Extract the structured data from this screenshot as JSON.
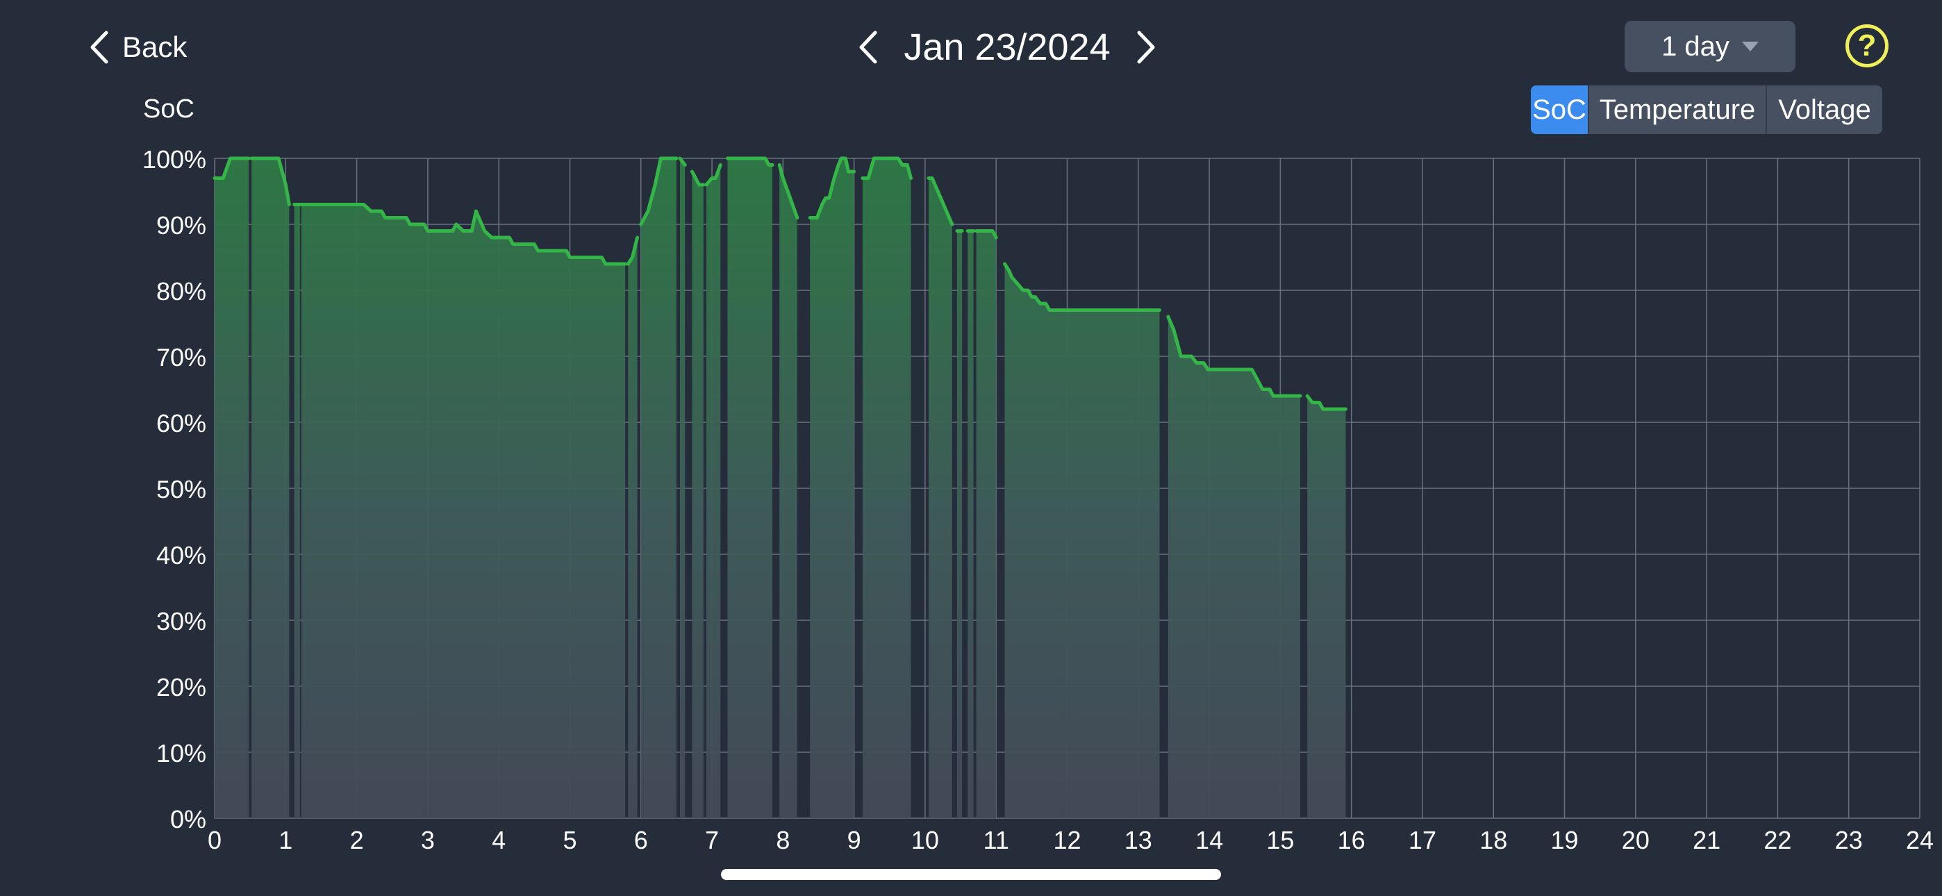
{
  "header": {
    "back_label": "Back",
    "date_label": "Jan 23/2024",
    "range_label": "1 day",
    "help_label": "?"
  },
  "tabs": [
    {
      "label": "SoC",
      "active": true
    },
    {
      "label": "Temperature",
      "active": false
    },
    {
      "label": "Voltage",
      "active": false
    }
  ],
  "colors": {
    "background": "#252d3b",
    "line": "#34b547",
    "fill_top": "#2e7a45",
    "accent": "#3c8cf0",
    "help": "#f0f05a"
  },
  "chart_data": {
    "type": "area",
    "ylabel": "SoC",
    "xlim": [
      0,
      24
    ],
    "ylim": [
      0,
      100
    ],
    "grid": true,
    "x_ticks": [
      "0",
      "1",
      "2",
      "3",
      "4",
      "5",
      "6",
      "7",
      "8",
      "9",
      "10",
      "11",
      "12",
      "13",
      "14",
      "15",
      "16",
      "17",
      "18",
      "19",
      "20",
      "21",
      "22",
      "23",
      "24"
    ],
    "y_ticks": [
      "0%",
      "10%",
      "20%",
      "30%",
      "40%",
      "50%",
      "60%",
      "70%",
      "80%",
      "90%",
      "100%"
    ],
    "segments": [
      [
        [
          0,
          97
        ],
        [
          0.12,
          97
        ],
        [
          0.22,
          100
        ],
        [
          0.48,
          100
        ]
      ],
      [
        [
          0.52,
          100
        ],
        [
          0.9,
          100
        ],
        [
          1.0,
          96
        ],
        [
          1.05,
          93
        ]
      ],
      [
        [
          1.12,
          93
        ],
        [
          1.2,
          93
        ]
      ],
      [
        [
          1.22,
          93
        ],
        [
          2.1,
          93
        ],
        [
          2.2,
          92
        ],
        [
          2.35,
          92
        ],
        [
          2.4,
          91
        ],
        [
          2.7,
          91
        ],
        [
          2.75,
          90
        ],
        [
          2.95,
          90
        ],
        [
          3.0,
          89
        ],
        [
          3.35,
          89
        ],
        [
          3.4,
          90
        ],
        [
          3.5,
          89
        ],
        [
          3.62,
          89
        ],
        [
          3.68,
          92
        ],
        [
          3.8,
          89
        ],
        [
          3.9,
          88
        ],
        [
          4.15,
          88
        ],
        [
          4.2,
          87
        ],
        [
          4.5,
          87
        ],
        [
          4.55,
          86
        ],
        [
          4.95,
          86
        ],
        [
          5.0,
          85
        ],
        [
          5.45,
          85
        ],
        [
          5.5,
          84
        ],
        [
          5.78,
          84
        ]
      ],
      [
        [
          5.82,
          84
        ],
        [
          5.88,
          85
        ],
        [
          5.95,
          88
        ]
      ],
      [
        [
          6.0,
          90
        ],
        [
          6.1,
          92
        ],
        [
          6.2,
          96
        ],
        [
          6.28,
          100
        ],
        [
          6.5,
          100
        ]
      ],
      [
        [
          6.55,
          100
        ],
        [
          6.62,
          99
        ]
      ],
      [
        [
          6.72,
          98
        ],
        [
          6.82,
          96
        ],
        [
          6.88,
          96
        ]
      ],
      [
        [
          6.92,
          96
        ],
        [
          7.0,
          97
        ],
        [
          7.05,
          97
        ],
        [
          7.12,
          99
        ]
      ],
      [
        [
          7.22,
          100
        ],
        [
          7.75,
          100
        ],
        [
          7.8,
          99
        ],
        [
          7.85,
          99
        ]
      ],
      [
        [
          7.95,
          99
        ],
        [
          8.0,
          97
        ],
        [
          8.1,
          94
        ],
        [
          8.2,
          91
        ]
      ],
      [
        [
          8.38,
          91
        ],
        [
          8.48,
          91
        ],
        [
          8.55,
          93
        ],
        [
          8.6,
          94
        ],
        [
          8.65,
          94
        ],
        [
          8.72,
          97
        ],
        [
          8.78,
          99
        ],
        [
          8.82,
          100
        ],
        [
          8.88,
          100
        ],
        [
          8.92,
          98
        ],
        [
          9.0,
          98
        ]
      ],
      [
        [
          9.12,
          97
        ],
        [
          9.2,
          97
        ],
        [
          9.28,
          100
        ],
        [
          9.45,
          100
        ],
        [
          9.62,
          100
        ],
        [
          9.68,
          99
        ],
        [
          9.75,
          99
        ],
        [
          9.8,
          97
        ]
      ],
      [
        [
          10.05,
          97
        ],
        [
          10.1,
          97
        ],
        [
          10.18,
          95
        ],
        [
          10.3,
          92
        ],
        [
          10.38,
          90
        ]
      ],
      [
        [
          10.45,
          89
        ],
        [
          10.52,
          89
        ]
      ],
      [
        [
          10.6,
          89
        ],
        [
          10.68,
          89
        ]
      ],
      [
        [
          10.72,
          89
        ],
        [
          10.95,
          89
        ],
        [
          11.0,
          88
        ]
      ],
      [
        [
          11.12,
          84
        ],
        [
          11.18,
          83
        ],
        [
          11.22,
          82
        ],
        [
          11.3,
          81
        ],
        [
          11.38,
          80
        ],
        [
          11.45,
          80
        ],
        [
          11.5,
          79
        ],
        [
          11.55,
          79
        ],
        [
          11.62,
          78
        ],
        [
          11.7,
          78
        ],
        [
          11.75,
          77
        ],
        [
          13.3,
          77
        ]
      ],
      [
        [
          13.42,
          76
        ],
        [
          13.5,
          74
        ],
        [
          13.55,
          72
        ],
        [
          13.6,
          70
        ],
        [
          13.75,
          70
        ],
        [
          13.82,
          69
        ],
        [
          13.92,
          69
        ],
        [
          13.98,
          68
        ],
        [
          14.6,
          68
        ],
        [
          14.7,
          66
        ],
        [
          14.75,
          65
        ],
        [
          14.85,
          65
        ],
        [
          14.9,
          64
        ],
        [
          15.28,
          64
        ]
      ],
      [
        [
          15.38,
          64
        ],
        [
          15.45,
          63
        ],
        [
          15.55,
          63
        ],
        [
          15.6,
          62
        ],
        [
          15.92,
          62
        ]
      ]
    ]
  }
}
